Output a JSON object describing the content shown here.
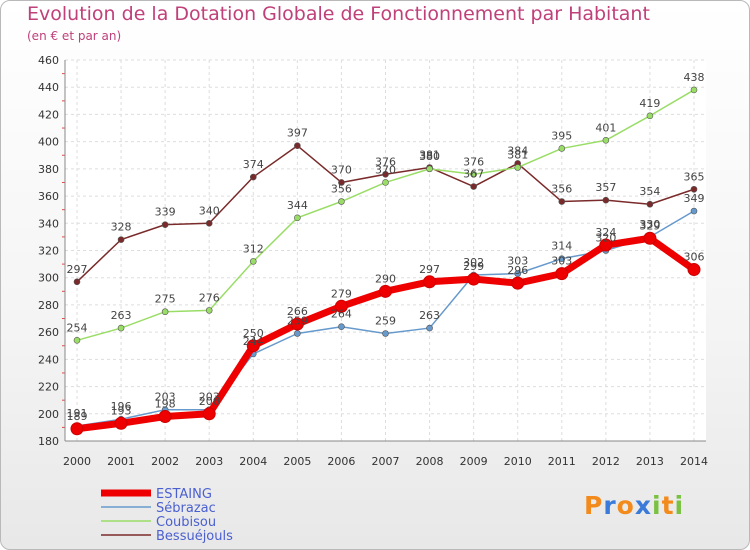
{
  "title": "Evolution de la Dotation Globale de Fonctionnement par Habitant",
  "subtitle": "(en € et par an)",
  "chart_data": {
    "type": "line",
    "x": [
      "2000",
      "2001",
      "2002",
      "2003",
      "2004",
      "2005",
      "2006",
      "2007",
      "2008",
      "2009",
      "2010",
      "2011",
      "2012",
      "2013",
      "2014"
    ],
    "ylim": [
      180,
      460
    ],
    "yticks": [
      180,
      200,
      220,
      240,
      260,
      280,
      300,
      320,
      340,
      360,
      380,
      400,
      420,
      440,
      460
    ],
    "grid": true,
    "legend_position": "bottom-left",
    "series": [
      {
        "name": "ESTAING",
        "color": "#ee0000",
        "values": [
          189,
          193,
          198,
          200,
          250,
          266,
          279,
          290,
          297,
          299,
          296,
          303,
          324,
          329,
          306
        ]
      },
      {
        "name": "Sébrazac",
        "color": "#6699cc",
        "values": [
          191,
          196,
          203,
          203,
          244,
          259,
          264,
          259,
          263,
          302,
          303,
          314,
          320,
          330,
          349
        ]
      },
      {
        "name": "Coubisou",
        "color": "#99dd66",
        "values": [
          254,
          263,
          275,
          276,
          312,
          344,
          356,
          370,
          380,
          376,
          381,
          395,
          401,
          419,
          438
        ]
      },
      {
        "name": "Bessuéjouls",
        "color": "#7a2a2a",
        "values": [
          297,
          328,
          339,
          340,
          374,
          397,
          370,
          376,
          381,
          367,
          384,
          356,
          357,
          354,
          365
        ]
      }
    ]
  },
  "logo": {
    "letters": [
      "P",
      "r",
      "o",
      "x",
      "i",
      "t",
      "i"
    ],
    "colors": [
      "#f28a1c",
      "#3a7ad8",
      "#f28a1c",
      "#3a7ad8",
      "#7ac142",
      "#f28a1c",
      "#7ac142"
    ]
  }
}
